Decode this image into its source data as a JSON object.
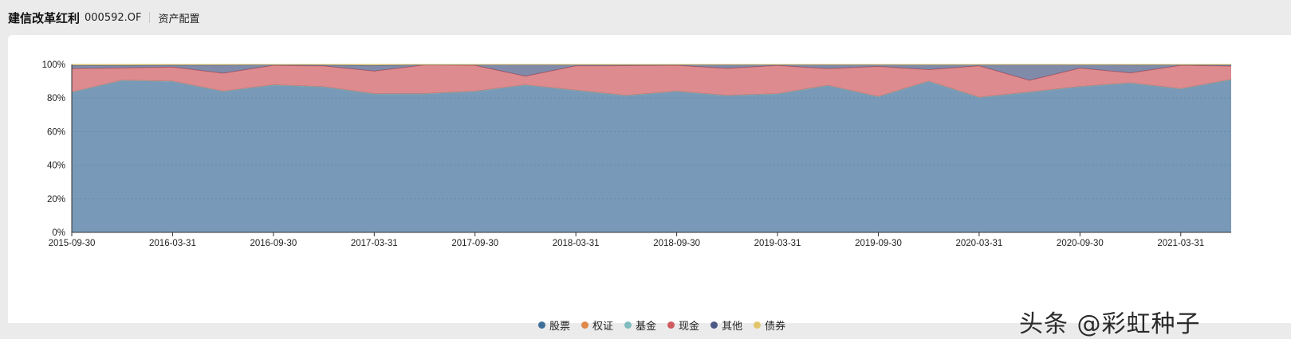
{
  "header": {
    "fund_name": "建信改革红利",
    "fund_code": "000592.OF",
    "section_title": "资产配置"
  },
  "watermark": {
    "text": "头条 @彩虹种子"
  },
  "chart_data": {
    "type": "area",
    "stacked": true,
    "x": [
      "2015-09-30",
      "2015-12-31",
      "2016-03-31",
      "2016-06-30",
      "2016-09-30",
      "2016-12-31",
      "2017-03-31",
      "2017-06-30",
      "2017-09-30",
      "2017-12-31",
      "2018-03-31",
      "2018-06-30",
      "2018-09-30",
      "2018-12-31",
      "2019-03-31",
      "2019-06-30",
      "2019-09-30",
      "2019-12-31",
      "2020-03-31",
      "2020-06-30",
      "2020-09-30",
      "2020-12-31",
      "2021-03-31",
      "2021-06-30"
    ],
    "x_tick_labels": [
      "2015-09-30",
      "2016-03-31",
      "2016-09-30",
      "2017-03-31",
      "2017-09-30",
      "2018-03-31",
      "2018-09-30",
      "2019-03-31",
      "2019-09-30",
      "2020-03-31",
      "2020-09-30",
      "2021-03-31"
    ],
    "y_tick_labels": [
      "0%",
      "20%",
      "40%",
      "60%",
      "80%",
      "100%"
    ],
    "ylim": [
      0,
      100
    ],
    "grid": true,
    "legend_position": "bottom",
    "series": [
      {
        "name": "股票",
        "color": "#3e6f9a",
        "values": [
          83.5,
          90.5,
          90,
          84,
          87.8,
          86.7,
          82.5,
          82.6,
          84,
          87.8,
          84.6,
          81.5,
          84,
          81.5,
          82.5,
          87.5,
          80.8,
          90,
          80.4,
          83.5,
          86.8,
          89,
          85.5,
          91
        ]
      },
      {
        "name": "权证",
        "color": "#e0894a",
        "values": [
          0,
          0,
          0,
          0,
          0,
          0,
          0,
          0,
          0,
          0,
          0,
          0,
          0,
          0,
          0,
          0,
          0,
          0,
          0,
          0,
          0,
          0,
          0,
          0
        ]
      },
      {
        "name": "基金",
        "color": "#7fbcbd",
        "values": [
          0,
          0,
          0,
          0,
          0,
          0,
          0,
          0,
          0,
          0,
          0,
          0,
          0,
          0,
          0,
          0,
          0,
          0,
          0,
          0,
          0,
          0,
          0,
          0
        ]
      },
      {
        "name": "现金",
        "color": "#cf5a5f",
        "values": [
          14,
          7.4,
          8.5,
          10.8,
          11.7,
          12.4,
          13.5,
          17.1,
          15.5,
          5.2,
          14.6,
          17.8,
          15.5,
          16.2,
          16.9,
          10,
          18,
          6.9,
          18.8,
          7,
          11,
          6,
          14,
          8
        ]
      },
      {
        "name": "其他",
        "color": "#4a5a85",
        "values": [
          2,
          1.6,
          1.1,
          4.8,
          0.3,
          0.6,
          3.5,
          0.1,
          0.3,
          6.8,
          0.6,
          0.5,
          0.3,
          2.1,
          0.4,
          2.3,
          1,
          3,
          0.6,
          9.3,
          2,
          4.7,
          0.3,
          0.7
        ]
      },
      {
        "name": "债券",
        "color": "#e2c56b",
        "values": [
          0.5,
          0.5,
          0.4,
          0.4,
          0.2,
          0.3,
          0.5,
          0.2,
          0.2,
          0.2,
          0.2,
          0.2,
          0.2,
          0.2,
          0.2,
          0.2,
          0.2,
          0.1,
          0.2,
          0.2,
          0.2,
          0.3,
          0.2,
          0.3
        ]
      }
    ]
  }
}
